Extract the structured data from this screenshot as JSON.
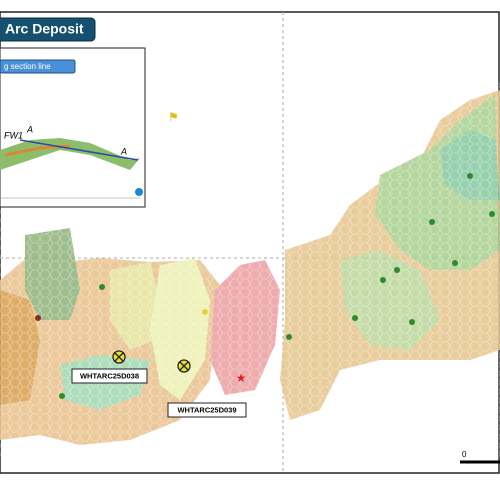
{
  "header": {
    "title": "Arc Deposit"
  },
  "inset": {
    "legend": "g section line",
    "labels": [
      "FW1",
      "A",
      "A"
    ]
  },
  "drillholes": [
    {
      "label": "WHTARC25D038"
    },
    {
      "label": "WHTARC25D039"
    }
  ],
  "scale": {
    "label": "0"
  }
}
